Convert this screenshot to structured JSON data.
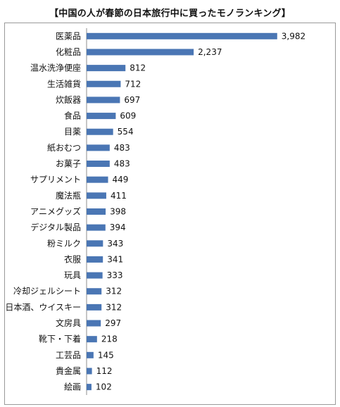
{
  "chart_data": {
    "type": "bar",
    "orientation": "horizontal",
    "title": "【中国の人が春節の日本旅行中に買ったモノランキング】",
    "categories": [
      "医薬品",
      "化粧品",
      "温水洗浄便座",
      "生活雑貨",
      "炊飯器",
      "食品",
      "目薬",
      "紙おむつ",
      "お菓子",
      "サプリメント",
      "魔法瓶",
      "アニメグッズ",
      "デジタル製品",
      "粉ミルク",
      "衣服",
      "玩具",
      "冷却ジェルシート",
      "日本酒、ウイスキー",
      "文房具",
      "靴下・下着",
      "工芸品",
      "貴金属",
      "絵画"
    ],
    "values": [
      3982,
      2237,
      812,
      712,
      697,
      609,
      554,
      483,
      483,
      449,
      411,
      398,
      394,
      343,
      341,
      333,
      312,
      312,
      297,
      218,
      145,
      112,
      102
    ],
    "value_labels": [
      "3,982",
      "2,237",
      "812",
      "712",
      "697",
      "609",
      "554",
      "483",
      "483",
      "449",
      "411",
      "398",
      "394",
      "343",
      "341",
      "333",
      "312",
      "312",
      "297",
      "218",
      "145",
      "112",
      "102"
    ],
    "xlabel": "",
    "ylabel": "",
    "xlim": [
      0,
      4000
    ],
    "grid": false,
    "legend": "none",
    "bar_color": "#4a76b4"
  }
}
